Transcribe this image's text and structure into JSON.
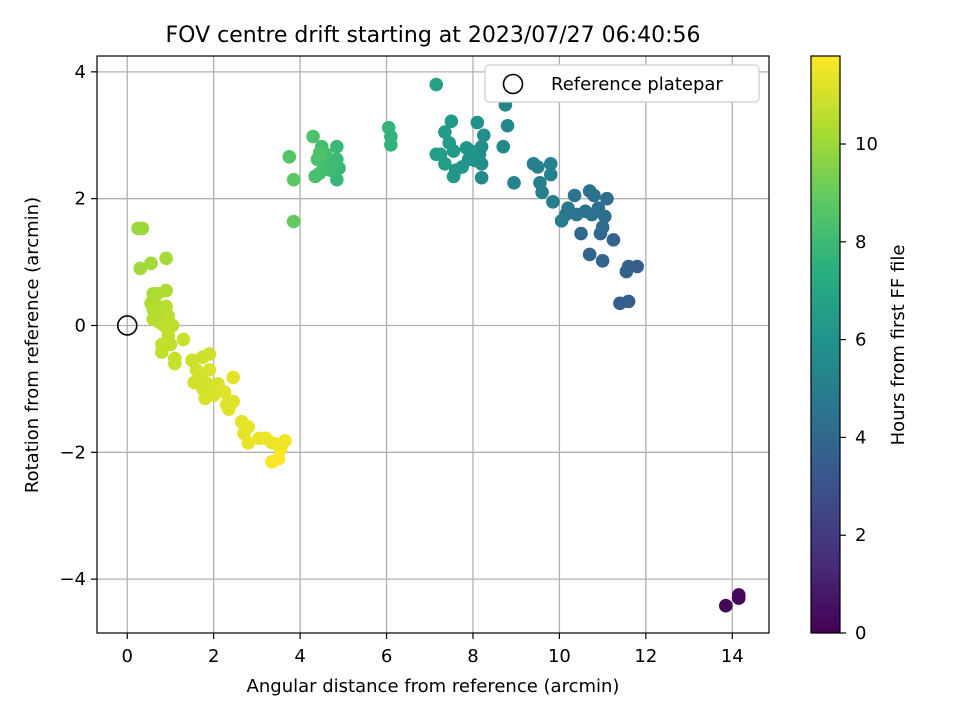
{
  "chart_data": {
    "type": "scatter",
    "title": "FOV centre drift starting at 2023/07/27 06:40:56",
    "xlabel": "Angular distance from reference (arcmin)",
    "ylabel": "Rotation from reference (arcmin)",
    "xlim": [
      -0.7,
      14.85
    ],
    "ylim": [
      -4.85,
      4.25
    ],
    "xticks": [
      "0",
      "2",
      "4",
      "6",
      "8",
      "10",
      "12",
      "14"
    ],
    "yticks": [
      "−4",
      "−2",
      "0",
      "2",
      "4"
    ],
    "grid": true,
    "colormap": "viridis",
    "colorbar": {
      "label": "Hours from first FF file",
      "range": [
        0,
        11.8
      ],
      "ticks": [
        "0",
        "2",
        "4",
        "6",
        "8",
        "10"
      ]
    },
    "legend": {
      "position": "top-right",
      "entries": [
        "Reference platepar"
      ]
    },
    "reference_point": {
      "x": 0,
      "y": 0
    },
    "points": [
      {
        "x": 13.85,
        "y": -4.42,
        "c": 0.1
      },
      {
        "x": 14.15,
        "y": -4.3,
        "c": 0.2
      },
      {
        "x": 14.15,
        "y": -4.25,
        "c": 0.3
      },
      {
        "x": 11.8,
        "y": 0.93,
        "c": 3.4
      },
      {
        "x": 11.6,
        "y": 0.38,
        "c": 3.5
      },
      {
        "x": 11.4,
        "y": 0.35,
        "c": 3.5
      },
      {
        "x": 11.55,
        "y": 0.85,
        "c": 3.6
      },
      {
        "x": 11.6,
        "y": 0.93,
        "c": 3.6
      },
      {
        "x": 11.25,
        "y": 1.35,
        "c": 3.7
      },
      {
        "x": 11,
        "y": 1.02,
        "c": 3.8
      },
      {
        "x": 10.7,
        "y": 1.12,
        "c": 3.9
      },
      {
        "x": 10.5,
        "y": 1.45,
        "c": 4.0
      },
      {
        "x": 10.95,
        "y": 1.45,
        "c": 4.0
      },
      {
        "x": 11,
        "y": 1.55,
        "c": 4.1
      },
      {
        "x": 11.05,
        "y": 1.72,
        "c": 4.2
      },
      {
        "x": 11.1,
        "y": 2.0,
        "c": 4.2
      },
      {
        "x": 10.9,
        "y": 1.85,
        "c": 4.3
      },
      {
        "x": 10.8,
        "y": 2.05,
        "c": 4.3
      },
      {
        "x": 10.7,
        "y": 2.12,
        "c": 4.4
      },
      {
        "x": 10.75,
        "y": 1.75,
        "c": 4.4
      },
      {
        "x": 10.6,
        "y": 1.8,
        "c": 4.5
      },
      {
        "x": 10.4,
        "y": 1.75,
        "c": 4.5
      },
      {
        "x": 10.35,
        "y": 2.05,
        "c": 4.6
      },
      {
        "x": 10.2,
        "y": 1.85,
        "c": 4.7
      },
      {
        "x": 10.15,
        "y": 1.75,
        "c": 4.7
      },
      {
        "x": 10.05,
        "y": 1.65,
        "c": 4.8
      },
      {
        "x": 9.85,
        "y": 1.95,
        "c": 4.9
      },
      {
        "x": 9.6,
        "y": 2.1,
        "c": 5.0
      },
      {
        "x": 9.55,
        "y": 2.25,
        "c": 5.0
      },
      {
        "x": 9.5,
        "y": 2.5,
        "c": 5.1
      },
      {
        "x": 9.4,
        "y": 2.55,
        "c": 5.1
      },
      {
        "x": 9.8,
        "y": 2.38,
        "c": 5.2
      },
      {
        "x": 9.8,
        "y": 2.55,
        "c": 5.2
      },
      {
        "x": 8.95,
        "y": 2.25,
        "c": 5.3
      },
      {
        "x": 8.8,
        "y": 3.15,
        "c": 5.4
      },
      {
        "x": 8.75,
        "y": 3.48,
        "c": 5.4
      },
      {
        "x": 8.7,
        "y": 2.82,
        "c": 5.5
      },
      {
        "x": 8.2,
        "y": 2.33,
        "c": 5.6
      },
      {
        "x": 8.2,
        "y": 2.55,
        "c": 5.7
      },
      {
        "x": 8.15,
        "y": 2.7,
        "c": 5.7
      },
      {
        "x": 8.2,
        "y": 2.82,
        "c": 5.8
      },
      {
        "x": 8.25,
        "y": 3.0,
        "c": 5.8
      },
      {
        "x": 8.1,
        "y": 3.2,
        "c": 5.9
      },
      {
        "x": 8.05,
        "y": 2.6,
        "c": 5.9
      },
      {
        "x": 7.95,
        "y": 2.75,
        "c": 6.0
      },
      {
        "x": 7.9,
        "y": 2.62,
        "c": 6.0
      },
      {
        "x": 7.85,
        "y": 2.8,
        "c": 6.1
      },
      {
        "x": 7.75,
        "y": 2.5,
        "c": 6.1
      },
      {
        "x": 7.55,
        "y": 2.35,
        "c": 6.2
      },
      {
        "x": 7.6,
        "y": 2.45,
        "c": 6.2
      },
      {
        "x": 7.55,
        "y": 2.75,
        "c": 6.3
      },
      {
        "x": 7.5,
        "y": 3.22,
        "c": 6.3
      },
      {
        "x": 7.45,
        "y": 2.88,
        "c": 6.4
      },
      {
        "x": 7.35,
        "y": 3.05,
        "c": 6.4
      },
      {
        "x": 7.35,
        "y": 2.55,
        "c": 6.5
      },
      {
        "x": 7.25,
        "y": 2.7,
        "c": 6.5
      },
      {
        "x": 7.15,
        "y": 2.7,
        "c": 6.6
      },
      {
        "x": 7.15,
        "y": 3.8,
        "c": 6.7
      },
      {
        "x": 6.1,
        "y": 2.85,
        "c": 7.6
      },
      {
        "x": 6.1,
        "y": 2.98,
        "c": 7.6
      },
      {
        "x": 6.05,
        "y": 3.12,
        "c": 7.7
      },
      {
        "x": 4.9,
        "y": 2.48,
        "c": 7.8
      },
      {
        "x": 4.85,
        "y": 2.3,
        "c": 7.8
      },
      {
        "x": 4.85,
        "y": 2.62,
        "c": 7.9
      },
      {
        "x": 4.85,
        "y": 2.82,
        "c": 7.9
      },
      {
        "x": 4.75,
        "y": 2.55,
        "c": 8.0
      },
      {
        "x": 4.7,
        "y": 2.45,
        "c": 8.0
      },
      {
        "x": 4.6,
        "y": 2.7,
        "c": 8.1
      },
      {
        "x": 4.55,
        "y": 2.5,
        "c": 8.1
      },
      {
        "x": 4.5,
        "y": 2.82,
        "c": 8.2
      },
      {
        "x": 4.45,
        "y": 2.4,
        "c": 8.2
      },
      {
        "x": 4.4,
        "y": 2.62,
        "c": 8.3
      },
      {
        "x": 4.35,
        "y": 2.35,
        "c": 8.3
      },
      {
        "x": 4.3,
        "y": 2.98,
        "c": 8.4
      },
      {
        "x": 4.45,
        "y": 2.72,
        "c": 8.4
      },
      {
        "x": 3.75,
        "y": 2.66,
        "c": 8.6
      },
      {
        "x": 3.85,
        "y": 2.3,
        "c": 8.8
      },
      {
        "x": 3.85,
        "y": 1.64,
        "c": 8.9
      },
      {
        "x": 0.25,
        "y": 1.53,
        "c": 10.0
      },
      {
        "x": 0.35,
        "y": 1.53,
        "c": 10.0
      },
      {
        "x": 0.3,
        "y": 0.9,
        "c": 10.1
      },
      {
        "x": 0.55,
        "y": 0.98,
        "c": 10.1
      },
      {
        "x": 0.9,
        "y": 1.06,
        "c": 10.2
      },
      {
        "x": 0.6,
        "y": 0.5,
        "c": 10.2
      },
      {
        "x": 0.7,
        "y": 0.5,
        "c": 10.3
      },
      {
        "x": 0.9,
        "y": 0.55,
        "c": 10.3
      },
      {
        "x": 0.55,
        "y": 0.35,
        "c": 10.3
      },
      {
        "x": 0.6,
        "y": 0.25,
        "c": 10.4
      },
      {
        "x": 0.7,
        "y": 0.3,
        "c": 10.4
      },
      {
        "x": 0.8,
        "y": 0.2,
        "c": 10.4
      },
      {
        "x": 0.9,
        "y": 0.3,
        "c": 10.5
      },
      {
        "x": 0.6,
        "y": 0.1,
        "c": 10.5
      },
      {
        "x": 0.75,
        "y": 0.05,
        "c": 10.5
      },
      {
        "x": 0.95,
        "y": 0.15,
        "c": 10.6
      },
      {
        "x": 0.85,
        "y": 0.0,
        "c": 10.6
      },
      {
        "x": 1.05,
        "y": 0.0,
        "c": 10.6
      },
      {
        "x": 0.95,
        "y": -0.15,
        "c": 10.7
      },
      {
        "x": 0.8,
        "y": -0.3,
        "c": 10.7
      },
      {
        "x": 1.0,
        "y": -0.3,
        "c": 10.7
      },
      {
        "x": 0.8,
        "y": -0.42,
        "c": 10.7
      },
      {
        "x": 1.3,
        "y": -0.22,
        "c": 10.8
      },
      {
        "x": 1.1,
        "y": -0.52,
        "c": 10.8
      },
      {
        "x": 1.1,
        "y": -0.6,
        "c": 10.8
      },
      {
        "x": 1.5,
        "y": -0.55,
        "c": 10.9
      },
      {
        "x": 1.75,
        "y": -0.5,
        "c": 10.9
      },
      {
        "x": 1.9,
        "y": -0.45,
        "c": 10.9
      },
      {
        "x": 1.6,
        "y": -0.7,
        "c": 11.0
      },
      {
        "x": 1.7,
        "y": -0.82,
        "c": 11.0
      },
      {
        "x": 1.55,
        "y": -0.9,
        "c": 11.0
      },
      {
        "x": 1.75,
        "y": -1.0,
        "c": 11.0
      },
      {
        "x": 1.85,
        "y": -0.92,
        "c": 11.0
      },
      {
        "x": 1.9,
        "y": -0.7,
        "c": 11.1
      },
      {
        "x": 1.8,
        "y": -1.15,
        "c": 11.1
      },
      {
        "x": 2.0,
        "y": -1.1,
        "c": 11.1
      },
      {
        "x": 2.1,
        "y": -0.92,
        "c": 11.1
      },
      {
        "x": 2.25,
        "y": -1.05,
        "c": 11.2
      },
      {
        "x": 2.3,
        "y": -1.25,
        "c": 11.2
      },
      {
        "x": 2.35,
        "y": -1.32,
        "c": 11.2
      },
      {
        "x": 2.45,
        "y": -1.2,
        "c": 11.2
      },
      {
        "x": 2.45,
        "y": -0.82,
        "c": 11.3
      },
      {
        "x": 2.65,
        "y": -1.52,
        "c": 11.3
      },
      {
        "x": 2.7,
        "y": -1.7,
        "c": 11.3
      },
      {
        "x": 2.8,
        "y": -1.6,
        "c": 11.4
      },
      {
        "x": 2.8,
        "y": -1.85,
        "c": 11.4
      },
      {
        "x": 3.05,
        "y": -1.78,
        "c": 11.4
      },
      {
        "x": 3.2,
        "y": -1.78,
        "c": 11.5
      },
      {
        "x": 3.35,
        "y": -1.85,
        "c": 11.5
      },
      {
        "x": 3.5,
        "y": -1.88,
        "c": 11.5
      },
      {
        "x": 3.55,
        "y": -1.95,
        "c": 11.6
      },
      {
        "x": 3.65,
        "y": -1.82,
        "c": 11.6
      },
      {
        "x": 3.35,
        "y": -2.15,
        "c": 11.7
      },
      {
        "x": 3.5,
        "y": -2.1,
        "c": 11.8
      }
    ]
  }
}
